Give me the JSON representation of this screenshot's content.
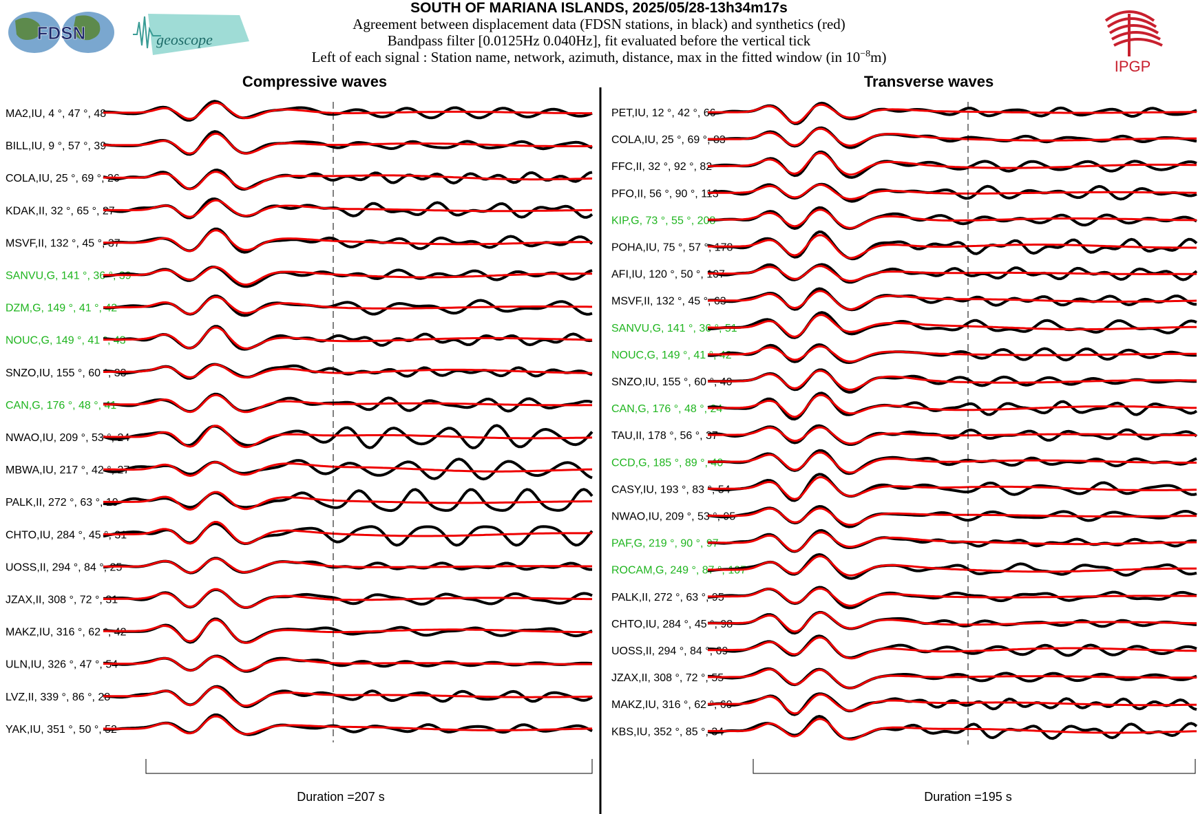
{
  "header": {
    "title": "SOUTH OF MARIANA ISLANDS, 2025/05/28-13h34m17s",
    "line1": "Agreement between displacement data (FDSN stations, in black) and synthetics (red)",
    "line2": "Bandpass filter [0.0125Hz 0.040Hz], fit evaluated before the vertical tick",
    "line3_prefix": "Left of each signal : Station name, network, azimuth, distance, max in the fitted window (in 10",
    "line3_exp": "−8",
    "line3_suffix": "m)"
  },
  "logos": {
    "fdsn": "FDSN",
    "geoscope": "geoscope",
    "ipgp": "IPGP"
  },
  "colors": {
    "data": "#000000",
    "synthetic": "#ee0000",
    "label_default": "#000000",
    "label_geoscope": "#1fb51f",
    "ipgp_red": "#c8202e"
  },
  "panels": [
    {
      "id": "compressive",
      "title": "Compressive waves",
      "duration_label": "Duration =207 s",
      "stations": [
        {
          "name": "MA2,IU",
          "az": "4",
          "dist": "47",
          "max": "48",
          "geoscope": false
        },
        {
          "name": "BILL,IU",
          "az": "9",
          "dist": "57",
          "max": "39",
          "geoscope": false
        },
        {
          "name": "COLA,IU",
          "az": "25",
          "dist": "69",
          "max": "26",
          "geoscope": false
        },
        {
          "name": "KDAK,II",
          "az": "32",
          "dist": "65",
          "max": "27",
          "geoscope": false
        },
        {
          "name": "MSVF,II",
          "az": "132",
          "dist": "45",
          "max": "37",
          "geoscope": false
        },
        {
          "name": "SANVU,G",
          "az": "141",
          "dist": "36",
          "max": "39",
          "geoscope": true
        },
        {
          "name": "DZM,G",
          "az": "149",
          "dist": "41",
          "max": "42",
          "geoscope": true
        },
        {
          "name": "NOUC,G",
          "az": "149",
          "dist": "41",
          "max": "43",
          "geoscope": true
        },
        {
          "name": "SNZO,IU",
          "az": "155",
          "dist": "60",
          "max": "33",
          "geoscope": false
        },
        {
          "name": "CAN,G",
          "az": "176",
          "dist": "48",
          "max": "41",
          "geoscope": true
        },
        {
          "name": "NWAO,IU",
          "az": "209",
          "dist": "53",
          "max": "24",
          "geoscope": false
        },
        {
          "name": "MBWA,IU",
          "az": "217",
          "dist": "42",
          "max": "27",
          "geoscope": false
        },
        {
          "name": "PALK,II",
          "az": "272",
          "dist": "63",
          "max": "19",
          "geoscope": false
        },
        {
          "name": "CHTO,IU",
          "az": "284",
          "dist": "45",
          "max": "31",
          "geoscope": false
        },
        {
          "name": "UOSS,II",
          "az": "294",
          "dist": "84",
          "max": "25",
          "geoscope": false
        },
        {
          "name": "JZAX,II",
          "az": "308",
          "dist": "72",
          "max": "31",
          "geoscope": false
        },
        {
          "name": "MAKZ,IU",
          "az": "316",
          "dist": "62",
          "max": "42",
          "geoscope": false
        },
        {
          "name": "ULN,IU",
          "az": "326",
          "dist": "47",
          "max": "54",
          "geoscope": false
        },
        {
          "name": "LVZ,II",
          "az": "339",
          "dist": "86",
          "max": "28",
          "geoscope": false
        },
        {
          "name": "YAK,IU",
          "az": "351",
          "dist": "50",
          "max": "52",
          "geoscope": false
        }
      ]
    },
    {
      "id": "transverse",
      "title": "Transverse waves",
      "duration_label": "Duration =195 s",
      "stations": [
        {
          "name": "PET,IU",
          "az": "12",
          "dist": "42",
          "max": "66",
          "geoscope": false
        },
        {
          "name": "COLA,IU",
          "az": "25",
          "dist": "69",
          "max": "83",
          "geoscope": false
        },
        {
          "name": "FFC,II",
          "az": "32",
          "dist": "92",
          "max": "82",
          "geoscope": false
        },
        {
          "name": "PFO,II",
          "az": "56",
          "dist": "90",
          "max": "113",
          "geoscope": false
        },
        {
          "name": "KIP,G",
          "az": "73",
          "dist": "55",
          "max": "208",
          "geoscope": true
        },
        {
          "name": "POHA,IU",
          "az": "75",
          "dist": "57",
          "max": "178",
          "geoscope": false
        },
        {
          "name": "AFI,IU",
          "az": "120",
          "dist": "50",
          "max": "107",
          "geoscope": false
        },
        {
          "name": "MSVF,II",
          "az": "132",
          "dist": "45",
          "max": "63",
          "geoscope": false
        },
        {
          "name": "SANVU,G",
          "az": "141",
          "dist": "36",
          "max": "51",
          "geoscope": true
        },
        {
          "name": "NOUC,G",
          "az": "149",
          "dist": "41",
          "max": "42",
          "geoscope": true
        },
        {
          "name": "SNZO,IU",
          "az": "155",
          "dist": "60",
          "max": "40",
          "geoscope": false
        },
        {
          "name": "CAN,G",
          "az": "176",
          "dist": "48",
          "max": "24",
          "geoscope": true
        },
        {
          "name": "TAU,II",
          "az": "178",
          "dist": "56",
          "max": "37",
          "geoscope": false
        },
        {
          "name": "CCD,G",
          "az": "185",
          "dist": "89",
          "max": "40",
          "geoscope": true
        },
        {
          "name": "CASY,IU",
          "az": "193",
          "dist": "83",
          "max": "54",
          "geoscope": false
        },
        {
          "name": "NWAO,IU",
          "az": "209",
          "dist": "53",
          "max": "95",
          "geoscope": false
        },
        {
          "name": "PAF,G",
          "az": "219",
          "dist": "90",
          "max": "97",
          "geoscope": true
        },
        {
          "name": "ROCAM,G",
          "az": "249",
          "dist": "87",
          "max": "107",
          "geoscope": true
        },
        {
          "name": "PALK,II",
          "az": "272",
          "dist": "63",
          "max": "95",
          "geoscope": false
        },
        {
          "name": "CHTO,IU",
          "az": "284",
          "dist": "45",
          "max": "98",
          "geoscope": false
        },
        {
          "name": "UOSS,II",
          "az": "294",
          "dist": "84",
          "max": "69",
          "geoscope": false
        },
        {
          "name": "JZAX,II",
          "az": "308",
          "dist": "72",
          "max": "55",
          "geoscope": false
        },
        {
          "name": "MAKZ,IU",
          "az": "316",
          "dist": "62",
          "max": "60",
          "geoscope": false
        },
        {
          "name": "KBS,IU",
          "az": "352",
          "dist": "85",
          "max": "34",
          "geoscope": false
        }
      ]
    }
  ]
}
